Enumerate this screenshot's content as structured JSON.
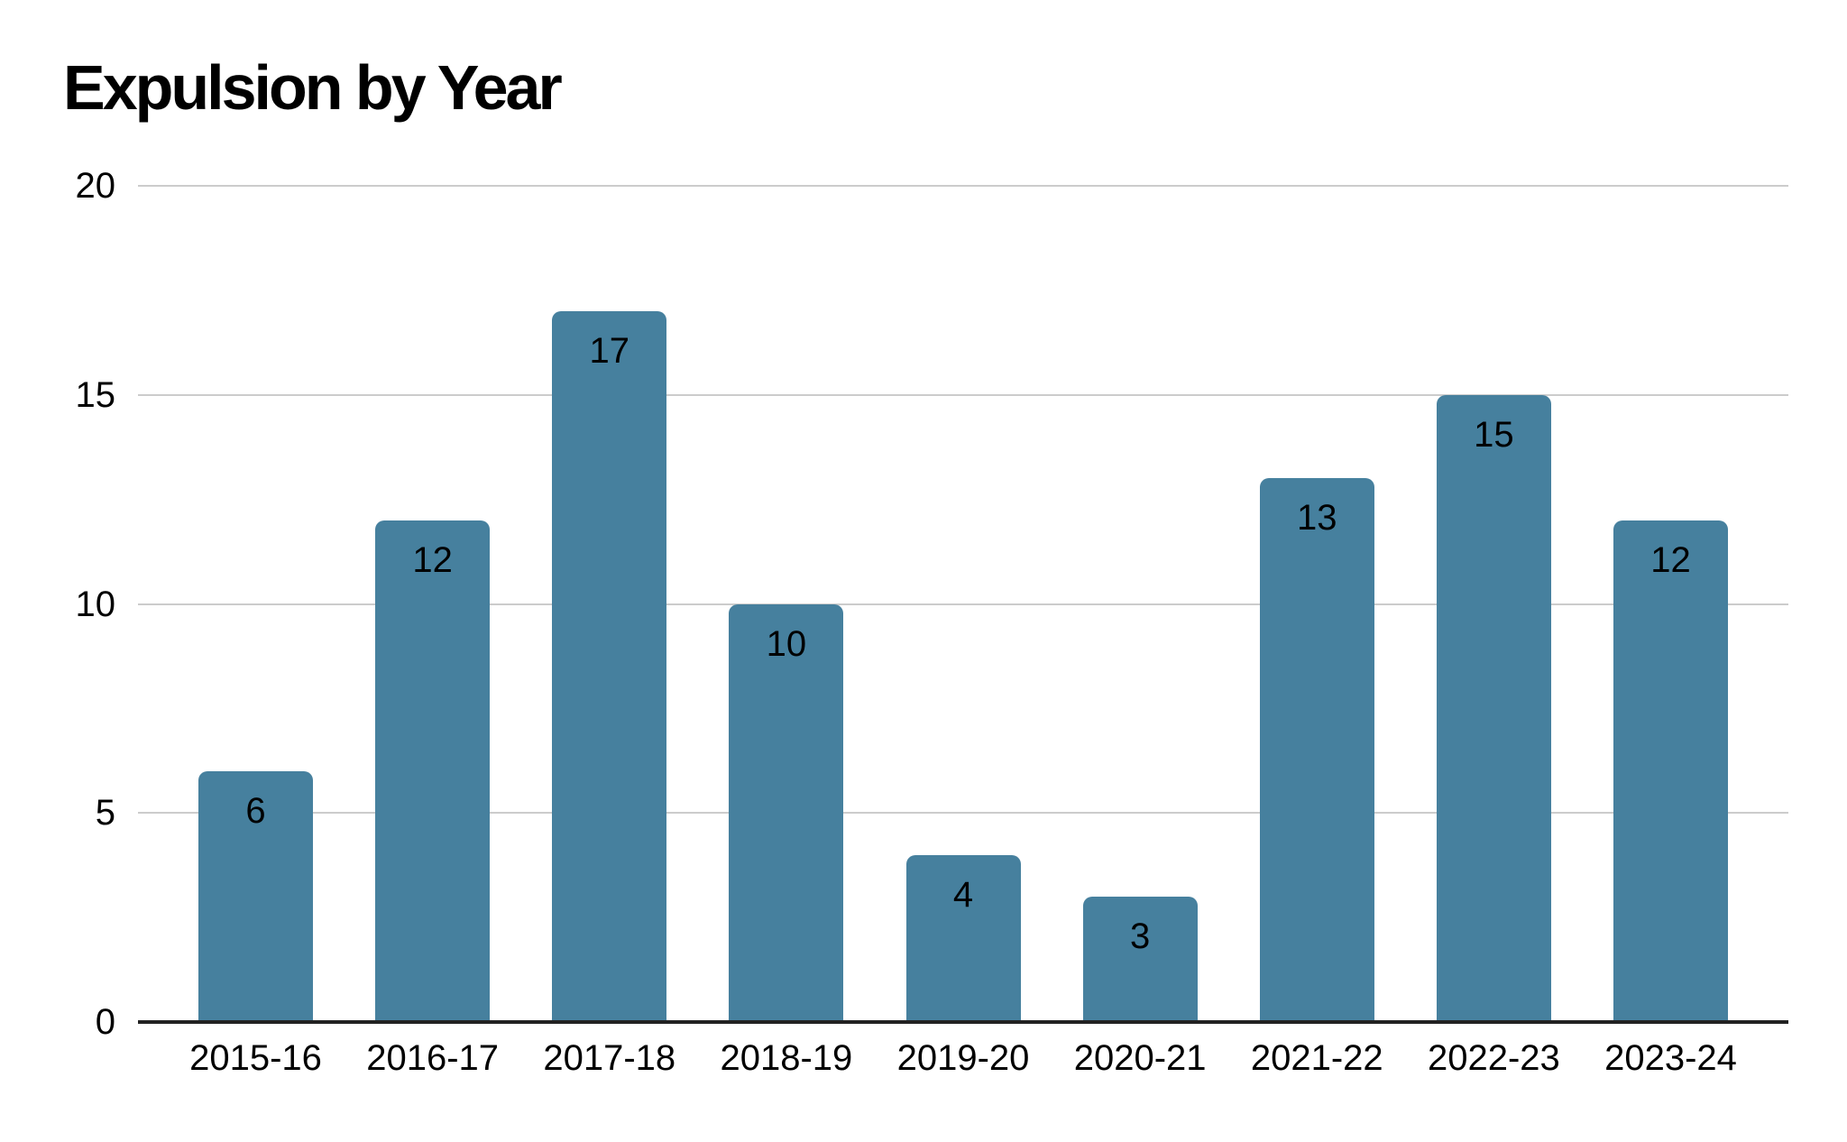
{
  "chart_data": {
    "type": "bar",
    "title": "Expulsion by Year",
    "categories": [
      "2015-16",
      "2016-17",
      "2017-18",
      "2018-19",
      "2019-20",
      "2020-21",
      "2021-22",
      "2022-23",
      "2023-24"
    ],
    "values": [
      6,
      12,
      17,
      10,
      4,
      3,
      13,
      15,
      12
    ],
    "xlabel": "",
    "ylabel": "",
    "ylim": [
      0,
      20
    ],
    "yticks": [
      0,
      5,
      10,
      15,
      20
    ],
    "grid": "horizontal",
    "legend_position": "none",
    "data_labels": "inside-top",
    "colors": {
      "bar": "#46809e",
      "gridline": "#cccccc",
      "axis_line": "#222222",
      "text": "#000000",
      "background": "#ffffff"
    }
  }
}
